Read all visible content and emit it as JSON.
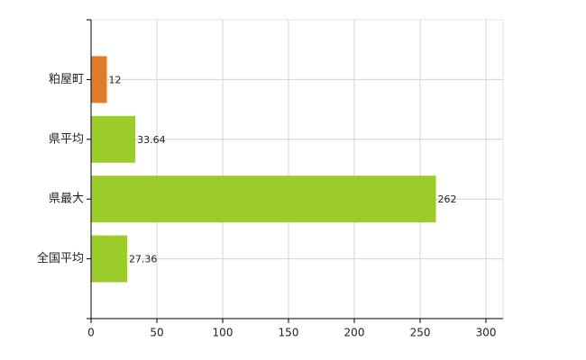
{
  "chart_data": {
    "type": "barh",
    "categories": [
      "粕屋町",
      "県平均",
      "県最大",
      "全国平均"
    ],
    "values": [
      12,
      33.64,
      262,
      27.36
    ],
    "colors": [
      "#e07b2a",
      "#9ccc2a",
      "#9ccc2a",
      "#9ccc2a"
    ],
    "xlim": [
      0,
      313
    ],
    "xticks": [
      0,
      50,
      100,
      150,
      200,
      250,
      300
    ],
    "grid": true
  }
}
